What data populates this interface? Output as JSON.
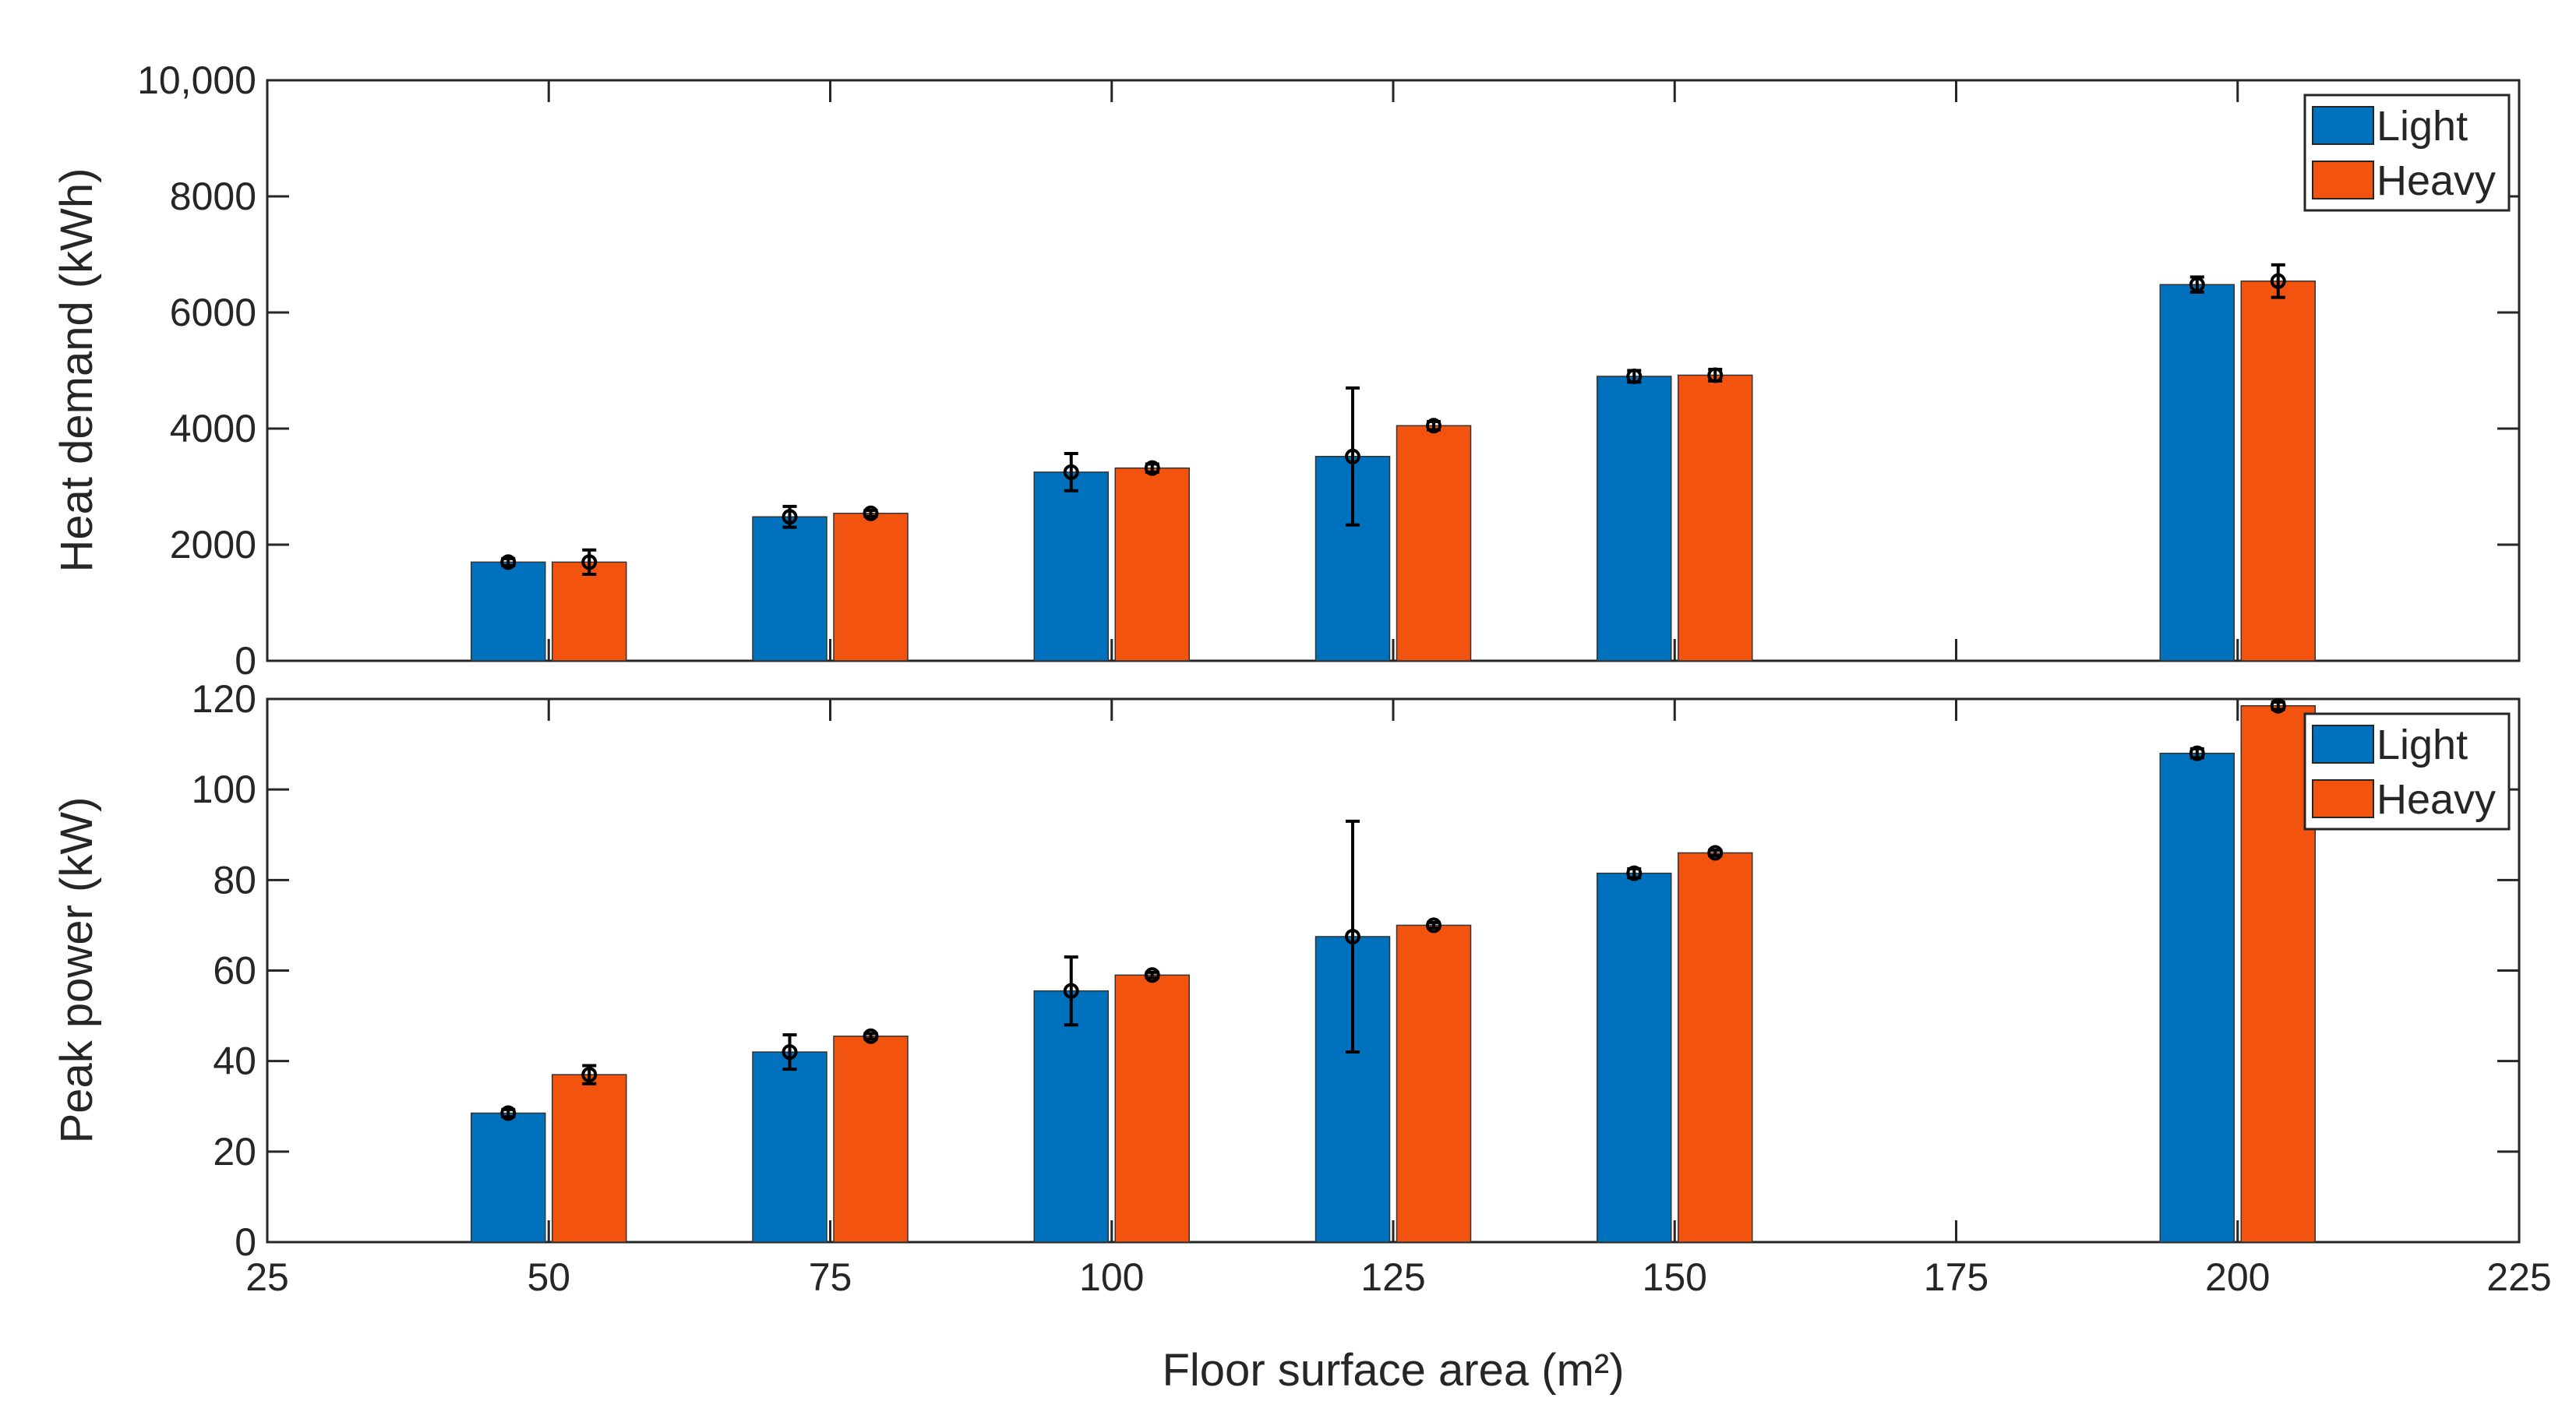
{
  "colors": {
    "light": "#0072bd",
    "heavy": "#f25410",
    "axis": "#262626",
    "errorbar": "#000000"
  },
  "chart_data": [
    {
      "type": "bar",
      "title": "",
      "xlabel": "",
      "ylabel": "Heat demand (kWh)",
      "xlim": [
        25,
        225
      ],
      "ylim": [
        0,
        10000
      ],
      "xticks": [
        25,
        50,
        75,
        100,
        125,
        150,
        175,
        200,
        225
      ],
      "yticks": [
        0,
        2000,
        4000,
        6000,
        8000,
        10000
      ],
      "ytick_labels": [
        "0",
        "2000",
        "4000",
        "6000",
        "8000",
        "10,000"
      ],
      "grid": false,
      "legend_position": "top-right",
      "categories": [
        50,
        75,
        100,
        125,
        150,
        200
      ],
      "series": [
        {
          "name": "Light",
          "color": "#0072bd",
          "values": [
            1700,
            2480,
            3250,
            3520,
            4900,
            6480
          ],
          "error": [
            60,
            180,
            320,
            1180,
            100,
            130
          ]
        },
        {
          "name": "Heavy",
          "color": "#f25410",
          "values": [
            1700,
            2540,
            3320,
            4050,
            4920,
            6540
          ],
          "error": [
            210,
            50,
            70,
            70,
            100,
            280
          ]
        }
      ]
    },
    {
      "type": "bar",
      "title": "",
      "xlabel": "Floor surface area (m²)",
      "ylabel": "Peak power (kW)",
      "xlim": [
        25,
        225
      ],
      "ylim": [
        0,
        120
      ],
      "xticks": [
        25,
        50,
        75,
        100,
        125,
        150,
        175,
        200,
        225
      ],
      "yticks": [
        0,
        20,
        40,
        60,
        80,
        100,
        120
      ],
      "ytick_labels": [
        "0",
        "20",
        "40",
        "60",
        "80",
        "100",
        "120"
      ],
      "grid": false,
      "legend_position": "top-right",
      "categories": [
        50,
        75,
        100,
        125,
        150,
        200
      ],
      "series": [
        {
          "name": "Light",
          "color": "#0072bd",
          "values": [
            28.5,
            42,
            55.5,
            67.5,
            81.5,
            108
          ],
          "error": [
            0.8,
            3.8,
            7.5,
            25.5,
            1.0,
            1.0
          ]
        },
        {
          "name": "Heavy",
          "color": "#f25410",
          "values": [
            37,
            45.5,
            59,
            70,
            86,
            118.5
          ],
          "error": [
            2.0,
            0.6,
            0.6,
            0.6,
            0.6,
            0.8
          ]
        }
      ]
    }
  ]
}
